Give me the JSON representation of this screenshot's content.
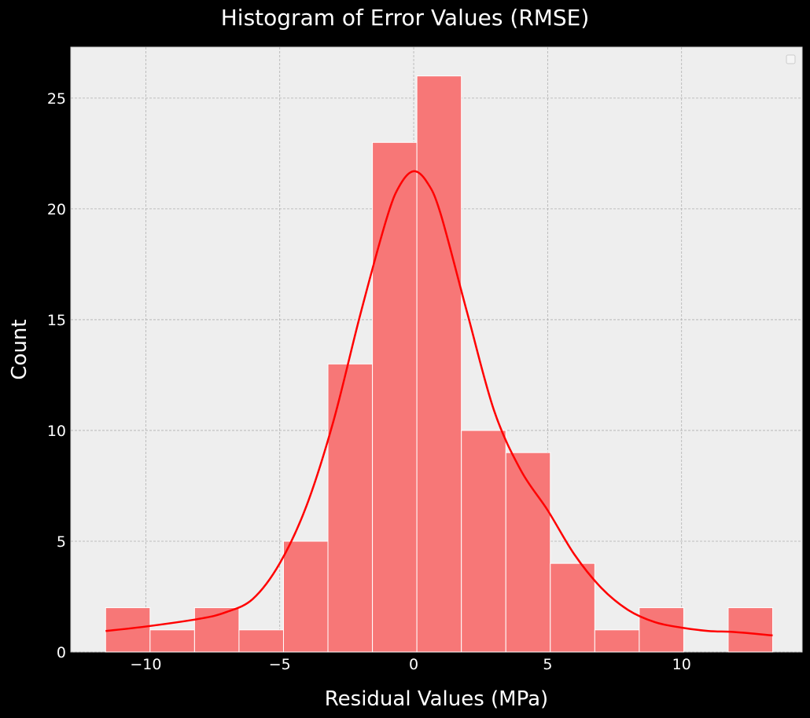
{
  "chart_data": {
    "type": "bar",
    "title": "Histogram of Error Values (RMSE)",
    "xlabel": "Residual Values (MPa)",
    "ylabel": "Count",
    "xlim": [
      -12.8,
      14.5
    ],
    "ylim": [
      0,
      27.3
    ],
    "grid": true,
    "legend": "top-right (empty)",
    "colors": {
      "background": "#000000",
      "plot_bg": "#eeeeee",
      "bar": "#f77777",
      "bar_edge": "#ffffff",
      "kde": "#ff0000",
      "grid": "#b0b0b0",
      "text": "#ffffff"
    },
    "x_ticks": [
      {
        "value": -10,
        "label": "−10"
      },
      {
        "value": -5,
        "label": "−5"
      },
      {
        "value": 0,
        "label": "0"
      },
      {
        "value": 5,
        "label": "5"
      },
      {
        "value": 10,
        "label": "10"
      }
    ],
    "y_ticks": [
      {
        "value": 0,
        "label": "0"
      },
      {
        "value": 5,
        "label": "5"
      },
      {
        "value": 10,
        "label": "10"
      },
      {
        "value": 15,
        "label": "15"
      },
      {
        "value": 20,
        "label": "20"
      },
      {
        "value": 25,
        "label": "25"
      }
    ],
    "bins": [
      {
        "x0": -11.5,
        "x1": -9.84,
        "count": 2
      },
      {
        "x0": -9.84,
        "x1": -8.18,
        "count": 1
      },
      {
        "x0": -8.18,
        "x1": -6.52,
        "count": 2
      },
      {
        "x0": -6.52,
        "x1": -4.86,
        "count": 1
      },
      {
        "x0": -4.86,
        "x1": -3.2,
        "count": 5
      },
      {
        "x0": -3.2,
        "x1": -1.54,
        "count": 13
      },
      {
        "x0": -1.54,
        "x1": 0.12,
        "count": 23
      },
      {
        "x0": 0.12,
        "x1": 1.78,
        "count": 26
      },
      {
        "x0": 1.78,
        "x1": 3.44,
        "count": 10
      },
      {
        "x0": 3.44,
        "x1": 5.1,
        "count": 9
      },
      {
        "x0": 5.1,
        "x1": 6.76,
        "count": 4
      },
      {
        "x0": 6.76,
        "x1": 8.42,
        "count": 1
      },
      {
        "x0": 8.42,
        "x1": 10.08,
        "count": 2
      },
      {
        "x0": 10.08,
        "x1": 11.74,
        "count": 0
      },
      {
        "x0": 11.74,
        "x1": 13.4,
        "count": 2
      }
    ],
    "kde": {
      "x": [
        -11.5,
        -10,
        -8,
        -7,
        -6,
        -5,
        -4,
        -3,
        -2,
        -1,
        -0.5,
        0,
        0.5,
        1,
        2,
        3,
        4,
        5,
        6,
        7,
        8,
        9,
        10,
        11,
        12,
        13.4
      ],
      "y": [
        0.95,
        1.15,
        1.5,
        1.8,
        2.4,
        4.0,
        6.6,
        10.4,
        15.2,
        19.6,
        21.1,
        21.7,
        21.2,
        19.8,
        15.3,
        10.9,
        8.2,
        6.4,
        4.4,
        2.9,
        1.9,
        1.35,
        1.1,
        0.95,
        0.9,
        0.75
      ]
    }
  }
}
